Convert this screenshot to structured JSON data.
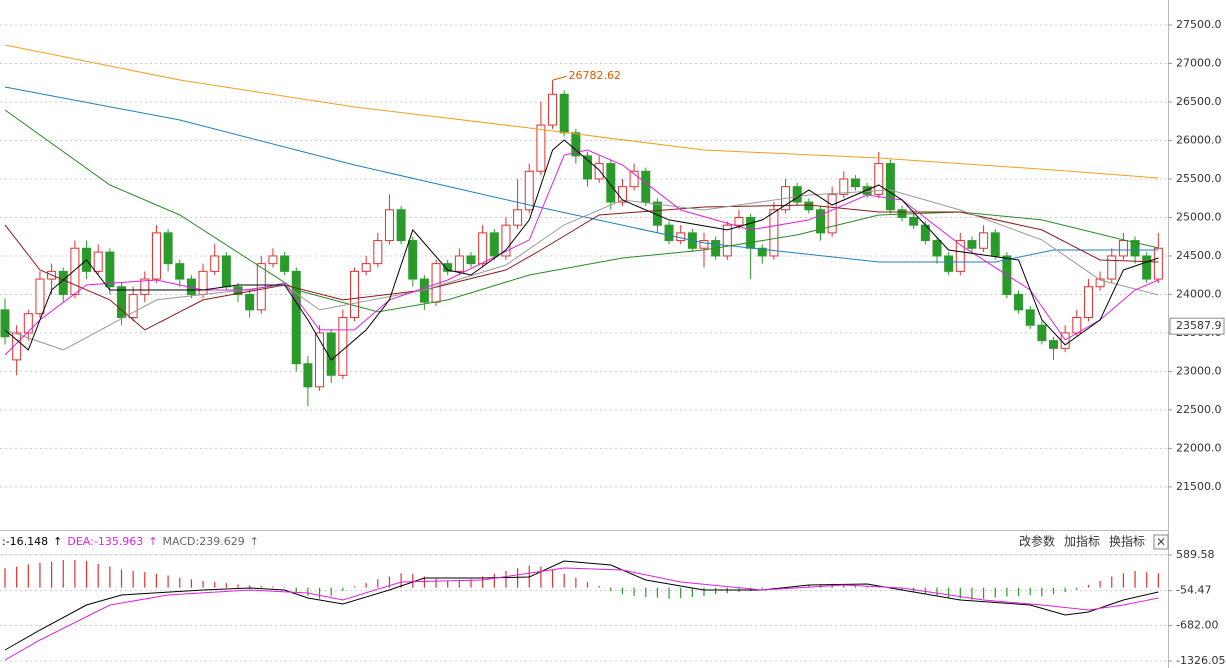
{
  "chart_data": [
    {
      "type": "candlestick",
      "ylim": [
        20940,
        27825
      ],
      "yticks": [
        {
          "value": 27500,
          "label": "27500.0"
        },
        {
          "value": 27000,
          "label": "27000.0"
        },
        {
          "value": 26500,
          "label": "26500.0"
        },
        {
          "value": 26000,
          "label": "26000.0"
        },
        {
          "value": 25500,
          "label": "25500.0"
        },
        {
          "value": 25000,
          "label": "25000.0"
        },
        {
          "value": 24500,
          "label": "24500.0"
        },
        {
          "value": 24000,
          "label": "24000.0"
        },
        {
          "value": 23500,
          "label": "23500.0"
        },
        {
          "value": 23000,
          "label": "23000.0"
        },
        {
          "value": 22500,
          "label": "22500.0"
        },
        {
          "value": 22000,
          "label": "22000.0"
        },
        {
          "value": 21500,
          "label": "21500.0"
        }
      ],
      "grid": true,
      "up_color": "#e03030",
      "down_color": "#2a9a2a",
      "last_price": 23587.9,
      "annotation": {
        "text": "26782.62",
        "color": "#e05a00"
      },
      "candles": [
        [
          23800,
          23950,
          23350,
          23450
        ],
        [
          23150,
          23600,
          22950,
          23500
        ],
        [
          23500,
          23800,
          23400,
          23750
        ],
        [
          23750,
          24300,
          23700,
          24200
        ],
        [
          24200,
          24400,
          24000,
          24300
        ],
        [
          24300,
          24350,
          23900,
          24000
        ],
        [
          24000,
          24700,
          23950,
          24600
        ],
        [
          24600,
          24700,
          24200,
          24300
        ],
        [
          24300,
          24650,
          24250,
          24550
        ],
        [
          24550,
          24600,
          24000,
          24100
        ],
        [
          24100,
          24150,
          23600,
          23700
        ],
        [
          23700,
          24100,
          23650,
          24000
        ],
        [
          24000,
          24300,
          23900,
          24200
        ],
        [
          24200,
          24900,
          24150,
          24800
        ],
        [
          24800,
          24850,
          24300,
          24400
        ],
        [
          24400,
          24450,
          24100,
          24200
        ],
        [
          24200,
          24250,
          23950,
          24000
        ],
        [
          24000,
          24400,
          23950,
          24300
        ],
        [
          24300,
          24650,
          24250,
          24500
        ],
        [
          24500,
          24550,
          24050,
          24100
        ],
        [
          24100,
          24150,
          23900,
          24000
        ],
        [
          24000,
          24050,
          23700,
          23800
        ],
        [
          23800,
          24500,
          23750,
          24400
        ],
        [
          24400,
          24600,
          24350,
          24500
        ],
        [
          24500,
          24550,
          24250,
          24300
        ],
        [
          24300,
          24350,
          23000,
          23100
        ],
        [
          23100,
          23200,
          22550,
          22800
        ],
        [
          22800,
          23600,
          22750,
          23500
        ],
        [
          23500,
          23550,
          22850,
          22950
        ],
        [
          22950,
          23800,
          22900,
          23700
        ],
        [
          23700,
          24350,
          23650,
          24300
        ],
        [
          24300,
          24500,
          24250,
          24400
        ],
        [
          24400,
          24800,
          24350,
          24700
        ],
        [
          24700,
          25300,
          24650,
          25100
        ],
        [
          25100,
          25150,
          24650,
          24700
        ],
        [
          24700,
          24750,
          24100,
          24200
        ],
        [
          24200,
          24250,
          23800,
          23900
        ],
        [
          23900,
          24450,
          23850,
          24400
        ],
        [
          24400,
          24450,
          24250,
          24300
        ],
        [
          24300,
          24600,
          24250,
          24500
        ],
        [
          24500,
          24550,
          24350,
          24400
        ],
        [
          24400,
          24900,
          24350,
          24800
        ],
        [
          24800,
          24850,
          24450,
          24500
        ],
        [
          24500,
          25000,
          24450,
          24900
        ],
        [
          24900,
          25500,
          24850,
          25100
        ],
        [
          25100,
          25700,
          25050,
          25600
        ],
        [
          25600,
          26500,
          25550,
          26200
        ],
        [
          26200,
          26782.62,
          26150,
          26600
        ],
        [
          26600,
          26650,
          26050,
          26100
        ],
        [
          26100,
          26150,
          25700,
          25800
        ],
        [
          25800,
          25850,
          25400,
          25500
        ],
        [
          25500,
          25800,
          25450,
          25700
        ],
        [
          25700,
          25750,
          25100,
          25200
        ],
        [
          25200,
          25500,
          25150,
          25400
        ],
        [
          25400,
          25700,
          25350,
          25600
        ],
        [
          25600,
          25650,
          25150,
          25200
        ],
        [
          25200,
          25250,
          24800,
          24900
        ],
        [
          24900,
          24950,
          24650,
          24700
        ],
        [
          24700,
          24900,
          24650,
          24800
        ],
        [
          24800,
          24850,
          24550,
          24600
        ],
        [
          24600,
          24800,
          24350,
          24700
        ],
        [
          24700,
          24750,
          24450,
          24500
        ],
        [
          24500,
          24950,
          24450,
          24900
        ],
        [
          24900,
          25100,
          24850,
          25000
        ],
        [
          25000,
          25050,
          24200,
          24600
        ],
        [
          24600,
          24650,
          24400,
          24500
        ],
        [
          24500,
          25200,
          24450,
          25100
        ],
        [
          25100,
          25500,
          25050,
          25400
        ],
        [
          25400,
          25450,
          25150,
          25200
        ],
        [
          25200,
          25250,
          25050,
          25100
        ],
        [
          25100,
          25150,
          24700,
          24800
        ],
        [
          24800,
          25400,
          24750,
          25300
        ],
        [
          25300,
          25600,
          25250,
          25500
        ],
        [
          25500,
          25550,
          25350,
          25400
        ],
        [
          25400,
          25450,
          25250,
          25300
        ],
        [
          25300,
          25850,
          25250,
          25700
        ],
        [
          25700,
          25750,
          25050,
          25100
        ],
        [
          25100,
          25150,
          24950,
          25000
        ],
        [
          25000,
          25050,
          24850,
          24900
        ],
        [
          24900,
          24950,
          24650,
          24700
        ],
        [
          24700,
          24750,
          24400,
          24500
        ],
        [
          24500,
          24550,
          24250,
          24300
        ],
        [
          24300,
          24800,
          24250,
          24700
        ],
        [
          24700,
          24750,
          24550,
          24600
        ],
        [
          24600,
          24900,
          24550,
          24800
        ],
        [
          24800,
          24850,
          24450,
          24500
        ],
        [
          24500,
          24550,
          23950,
          24000
        ],
        [
          24000,
          24050,
          23750,
          23800
        ],
        [
          23800,
          23850,
          23550,
          23600
        ],
        [
          23600,
          23650,
          23350,
          23400
        ],
        [
          23400,
          23450,
          23150,
          23300
        ],
        [
          23300,
          23600,
          23250,
          23500
        ],
        [
          23500,
          23800,
          23450,
          23700
        ],
        [
          23700,
          24200,
          23650,
          24100
        ],
        [
          24100,
          24300,
          24050,
          24200
        ],
        [
          24200,
          24600,
          24150,
          24500
        ],
        [
          24500,
          24800,
          24450,
          24700
        ],
        [
          24700,
          24750,
          24400,
          24500
        ],
        [
          24500,
          24550,
          24150,
          24200
        ],
        [
          24200,
          24800,
          24150,
          24600
        ]
      ],
      "lines": [
        {
          "color": "#f0a020",
          "x": [
            0,
            15,
            30,
            45,
            60,
            75,
            90,
            99
          ],
          "values": [
            27240,
            26786,
            26435,
            26162,
            25877,
            25773,
            25617,
            25513
          ]
        },
        {
          "color": "#1f7fc0",
          "x": [
            0,
            15,
            30,
            45,
            60,
            75,
            85,
            90,
            99
          ],
          "values": [
            26695,
            26266,
            25682,
            25162,
            24669,
            24422,
            24422,
            24578,
            24578
          ]
        },
        {
          "color": "#2a8a2a",
          "x": [
            0,
            9,
            15,
            25,
            32,
            38,
            45,
            53,
            60,
            68,
            75,
            82,
            89,
            96,
            99
          ],
          "values": [
            26396,
            25422,
            25032,
            24058,
            23773,
            23929,
            24253,
            24474,
            24578,
            24773,
            25032,
            25071,
            24968,
            24708,
            24604
          ]
        },
        {
          "color": "#8b1a1a",
          "x": [
            0,
            3,
            9,
            12,
            17,
            24,
            29,
            36,
            43,
            46,
            51,
            60,
            69,
            75,
            82,
            89,
            94,
            99
          ],
          "values": [
            24903,
            24318,
            23929,
            23539,
            23929,
            24123,
            23929,
            24058,
            24318,
            24578,
            25032,
            25136,
            25162,
            25071,
            25071,
            24838,
            24448,
            24422
          ]
        },
        {
          "color": "#999999",
          "x": [
            0,
            5,
            13,
            24,
            27,
            36,
            43,
            48,
            53,
            60,
            69,
            76,
            82,
            89,
            94,
            99
          ],
          "values": [
            23539,
            23279,
            23929,
            24123,
            23799,
            24058,
            24383,
            24903,
            25227,
            25097,
            25292,
            25357,
            25097,
            24708,
            24188,
            23994
          ]
        },
        {
          "color": "#e020e0",
          "x": [
            0,
            3,
            7,
            13,
            17,
            21,
            24,
            27,
            30,
            33,
            38,
            45,
            48,
            50,
            53,
            58,
            64,
            69,
            74,
            77,
            82,
            88,
            91,
            94,
            97,
            99
          ],
          "values": [
            23214,
            23669,
            24123,
            24188,
            24058,
            24058,
            24149,
            23539,
            23539,
            23929,
            24188,
            24708,
            25812,
            25877,
            25682,
            25097,
            24838,
            24968,
            25292,
            25227,
            24643,
            24058,
            23409,
            23669,
            24058,
            24188
          ]
        },
        {
          "color": "#000000",
          "x": [
            0,
            2,
            4,
            7,
            9,
            13,
            17,
            20,
            24,
            26,
            28,
            31,
            33,
            35,
            38,
            40,
            43,
            45,
            47,
            48,
            51,
            53,
            57,
            62,
            65,
            69,
            71,
            75,
            77,
            81,
            84,
            87,
            89,
            91,
            94,
            96,
            99
          ],
          "values": [
            23539,
            23279,
            24058,
            24448,
            24058,
            24058,
            24058,
            24123,
            24123,
            23669,
            23149,
            23539,
            23929,
            24838,
            24318,
            24253,
            24578,
            24968,
            25877,
            26006,
            25617,
            25227,
            24968,
            24838,
            24968,
            25357,
            25162,
            25422,
            25227,
            24578,
            24513,
            24448,
            23669,
            23344,
            23669,
            24318,
            24474
          ]
        }
      ]
    },
    {
      "type": "macd",
      "ylim": [
        -1452,
        716
      ],
      "yticks": [
        589.58,
        -54.47,
        {
          "value": -682,
          "label": "-682.00"
        },
        -1326.05
      ],
      "header": [
        {
          "text": ":-16.148",
          "color": "#000000"
        },
        {
          "text": "↑",
          "color": "#000000"
        },
        {
          "text": "DEA:-135.963",
          "color": "#e020e0"
        },
        {
          "text": "↑",
          "color": "#e020e0"
        },
        {
          "text": "MACD:239.629",
          "color": "#666666"
        },
        {
          "text": "↑",
          "color": "#666666"
        }
      ],
      "buttons": [
        "改参数",
        "加指标",
        "换指标",
        "×"
      ],
      "up_color": "#e03030",
      "down_color": "#2a9a2a",
      "histogram": [
        350,
        380,
        420,
        450,
        470,
        500,
        500,
        480,
        430,
        380,
        330,
        300,
        280,
        250,
        220,
        180,
        150,
        120,
        100,
        80,
        60,
        40,
        30,
        20,
        10,
        -80,
        -150,
        -200,
        -150,
        -60,
        20,
        80,
        150,
        200,
        260,
        250,
        200,
        160,
        130,
        120,
        150,
        200,
        250,
        300,
        350,
        400,
        380,
        330,
        250,
        180,
        100,
        30,
        -60,
        -120,
        -150,
        -170,
        -180,
        -200,
        -190,
        -170,
        -150,
        -120,
        -100,
        -80,
        -60,
        -50,
        -30,
        10,
        30,
        50,
        60,
        70,
        60,
        40,
        30,
        20,
        10,
        -40,
        -80,
        -120,
        -150,
        -180,
        -200,
        -220,
        -200,
        -180,
        -160,
        -150,
        -140,
        -160,
        -120,
        -80,
        -40,
        50,
        120,
        200,
        260,
        300,
        280,
        260
      ],
      "lines": [
        {
          "color": "#000000",
          "x": [
            0,
            3,
            7,
            10,
            17,
            21,
            24,
            26,
            29,
            33,
            36,
            41,
            45,
            48,
            52,
            55,
            60,
            65,
            69,
            74,
            77,
            82,
            88,
            91,
            93,
            96,
            99
          ],
          "values": [
            -1127,
            -766,
            -314,
            -133,
            -43,
            -7,
            -43,
            -188,
            -296,
            -43,
            174,
            174,
            192,
            481,
            409,
            138,
            -43,
            -43,
            47,
            65,
            -43,
            -224,
            -314,
            -495,
            -441,
            -224,
            -79
          ]
        },
        {
          "color": "#e020e0",
          "x": [
            0,
            3,
            9,
            14,
            21,
            26,
            29,
            34,
            41,
            48,
            53,
            58,
            65,
            72,
            77,
            84,
            89,
            93,
            96,
            99
          ],
          "values": [
            -1308,
            -947,
            -314,
            -133,
            -43,
            -97,
            -224,
            102,
            138,
            355,
            319,
            102,
            -43,
            47,
            -7,
            -224,
            -314,
            -405,
            -314,
            -188
          ]
        }
      ]
    }
  ]
}
